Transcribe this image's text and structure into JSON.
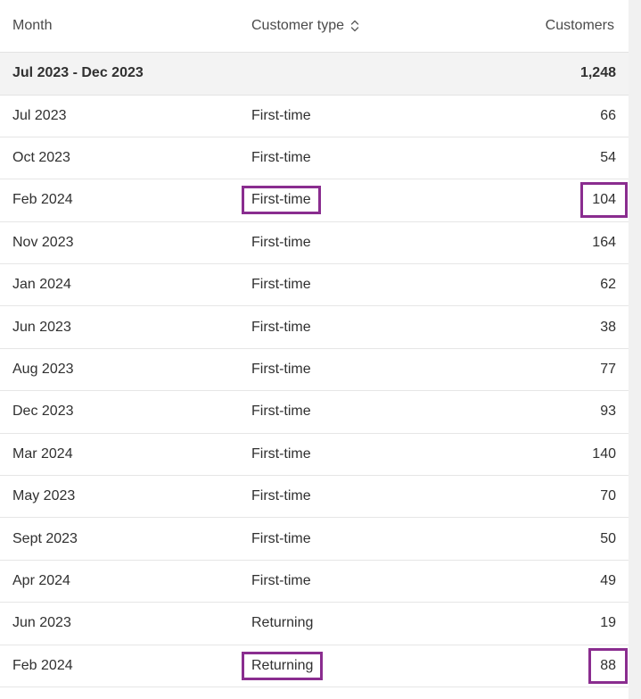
{
  "table": {
    "headers": {
      "month": "Month",
      "customer_type": "Customer type",
      "customers": "Customers"
    },
    "sort_icon": "sort-up-down-icon",
    "summary": {
      "label": "Jul 2023 - Dec 2023",
      "type": "",
      "customers": "1,248"
    },
    "rows": [
      {
        "month": "Jul 2023",
        "type": "First-time",
        "customers": "66"
      },
      {
        "month": "Oct 2023",
        "type": "First-time",
        "customers": "54"
      },
      {
        "month": "Feb 2024",
        "type": "First-time",
        "customers": "104"
      },
      {
        "month": "Nov 2023",
        "type": "First-time",
        "customers": "164"
      },
      {
        "month": "Jan 2024",
        "type": "First-time",
        "customers": "62"
      },
      {
        "month": "Jun 2023",
        "type": "First-time",
        "customers": "38"
      },
      {
        "month": "Aug 2023",
        "type": "First-time",
        "customers": "77"
      },
      {
        "month": "Dec 2023",
        "type": "First-time",
        "customers": "93"
      },
      {
        "month": "Mar 2024",
        "type": "First-time",
        "customers": "140"
      },
      {
        "month": "May 2023",
        "type": "First-time",
        "customers": "70"
      },
      {
        "month": "Sept 2023",
        "type": "First-time",
        "customers": "50"
      },
      {
        "month": "Apr 2024",
        "type": "First-time",
        "customers": "49"
      },
      {
        "month": "Jun 2023",
        "type": "Returning",
        "customers": "19"
      },
      {
        "month": "Feb 2024",
        "type": "Returning",
        "customers": "88"
      }
    ]
  },
  "highlight_color": "#8a2d8f"
}
